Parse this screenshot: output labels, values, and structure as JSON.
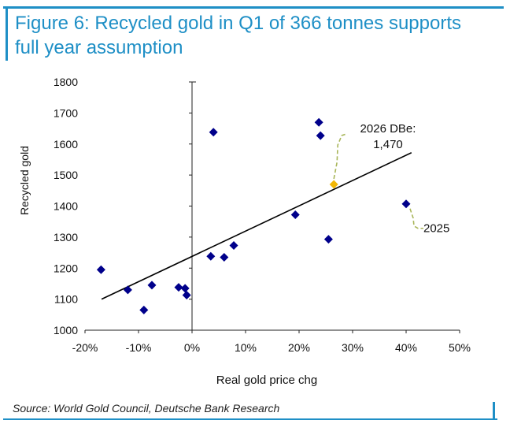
{
  "figure": {
    "title": "Figure 6: Recycled gold in Q1 of 366 tonnes supports full year assumption",
    "source": "Source: World Gold Council, Deutsche Bank Research"
  },
  "colors": {
    "accent": "#1e8fc6",
    "points": "#00008b",
    "highlight": "#f2b705",
    "callout": "#a9b65a"
  },
  "chart_data": {
    "type": "scatter",
    "title": "",
    "xlabel": "Real gold price chg",
    "ylabel": "Recycled gold",
    "xlim": [
      -20,
      50
    ],
    "ylim": [
      1000,
      1800
    ],
    "xticks": [
      -20,
      -10,
      0,
      10,
      20,
      30,
      40,
      50
    ],
    "xtick_labels": [
      "-20%",
      "-10%",
      "0%",
      "10%",
      "20%",
      "30%",
      "40%",
      "50%"
    ],
    "yticks": [
      1000,
      1100,
      1200,
      1300,
      1400,
      1500,
      1600,
      1700,
      1800
    ],
    "ytick_labels": [
      "1000",
      "1100",
      "1200",
      "1300",
      "1400",
      "1500",
      "1600",
      "1700",
      "1800"
    ],
    "grid": false,
    "points": [
      {
        "x": -17,
        "y": 1195
      },
      {
        "x": -12,
        "y": 1130
      },
      {
        "x": -9,
        "y": 1065
      },
      {
        "x": -7.5,
        "y": 1145
      },
      {
        "x": -2.5,
        "y": 1138
      },
      {
        "x": -1.3,
        "y": 1135
      },
      {
        "x": -1,
        "y": 1113
      },
      {
        "x": 3.5,
        "y": 1238
      },
      {
        "x": 4,
        "y": 1638
      },
      {
        "x": 6,
        "y": 1235
      },
      {
        "x": 7.8,
        "y": 1273
      },
      {
        "x": 19.3,
        "y": 1372
      },
      {
        "x": 23.7,
        "y": 1670
      },
      {
        "x": 24,
        "y": 1627
      },
      {
        "x": 25.5,
        "y": 1293
      },
      {
        "x": 40,
        "y": 1407
      }
    ],
    "highlight_point": {
      "x": 26.5,
      "y": 1470,
      "label_line1": "2026 DBe:",
      "label_line2": "1,470"
    },
    "annotations": [
      {
        "text": "2025",
        "x": 40,
        "y": 1407
      }
    ],
    "trendline": {
      "x": [
        -16.9,
        41
      ],
      "y": [
        1100,
        1572
      ]
    }
  }
}
